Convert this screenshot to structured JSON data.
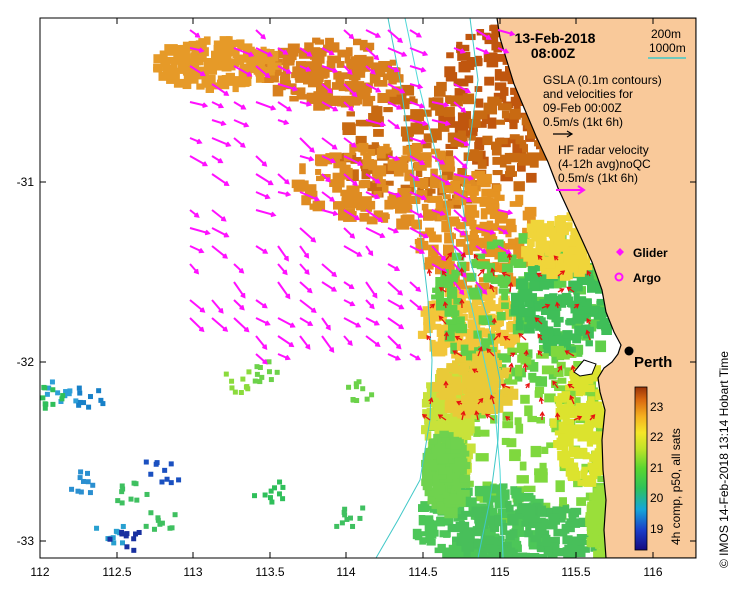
{
  "map": {
    "date_line": "13-Feb-2018",
    "time_line": "08:00Z",
    "gsla_line1": "GSLA (0.1m contours)",
    "gsla_line2": "and velocities for",
    "gsla_line3": "09-Feb 00:00Z",
    "gsla_scale": "0.5m/s (1kt 6h)",
    "hf_line1": "HF radar velocity",
    "hf_line2": "(4-12h avg)noQC",
    "hf_scale": "0.5m/s (1kt 6h)",
    "depth_200": "200m",
    "depth_1000": "1000m",
    "glider_label": "Glider",
    "argo_label": "Argo",
    "city_label": "Perth",
    "footer": "© IMOS 14-Feb-2018 13:14 Hobart Time",
    "colorbar_title": "4h comp, p50, all sats",
    "colorbar_ticks": [
      "23",
      "22",
      "21",
      "20",
      "19"
    ],
    "x_ticks": [
      "112",
      "112.5",
      "113",
      "113.5",
      "114",
      "114.5",
      "115",
      "115.5",
      "116"
    ],
    "y_ticks": [
      "-31",
      "-32",
      "-33"
    ],
    "colors": {
      "land": "#f9c99a",
      "hf_arrow": "#ff10ff",
      "gsla_arrow": "#e81010",
      "isobath_200": "#50d8d8",
      "isobath_1000": "#40c8c8"
    }
  }
}
